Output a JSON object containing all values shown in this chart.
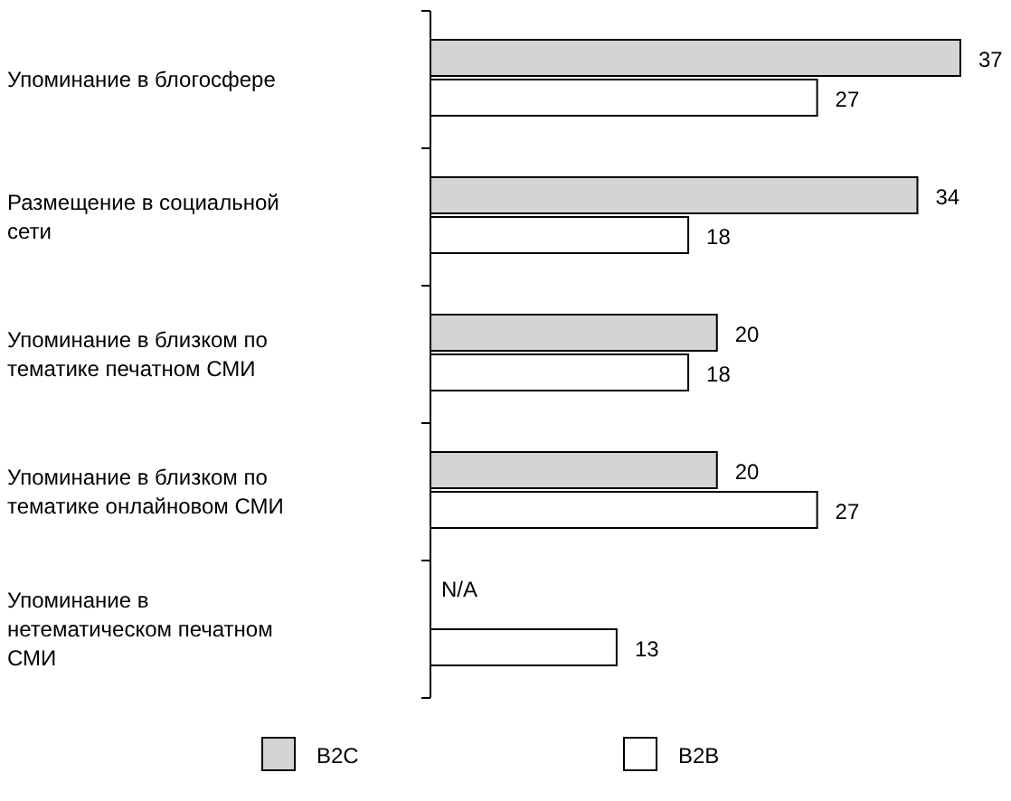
{
  "chart_data": {
    "type": "bar",
    "orientation": "horizontal",
    "categories": [
      "Упоминание в блогосфере",
      "Размещение в социальной сети",
      "Упоминание в близком по тематике печатном СМИ",
      "Упоминание в близком по тематике онлайновом СМИ",
      "Упоминание в нетематическом печатном СМИ"
    ],
    "series": [
      {
        "name": "B2C",
        "color": "#d4d4d4",
        "values": [
          37,
          34,
          20,
          20,
          null
        ],
        "value_labels": [
          "37",
          "34",
          "20",
          "20",
          "N/A"
        ]
      },
      {
        "name": "B2B",
        "color": "#ffffff",
        "values": [
          27,
          18,
          18,
          27,
          13
        ],
        "value_labels": [
          "27",
          "18",
          "18",
          "27",
          "13"
        ]
      }
    ],
    "legend": "bottom"
  }
}
